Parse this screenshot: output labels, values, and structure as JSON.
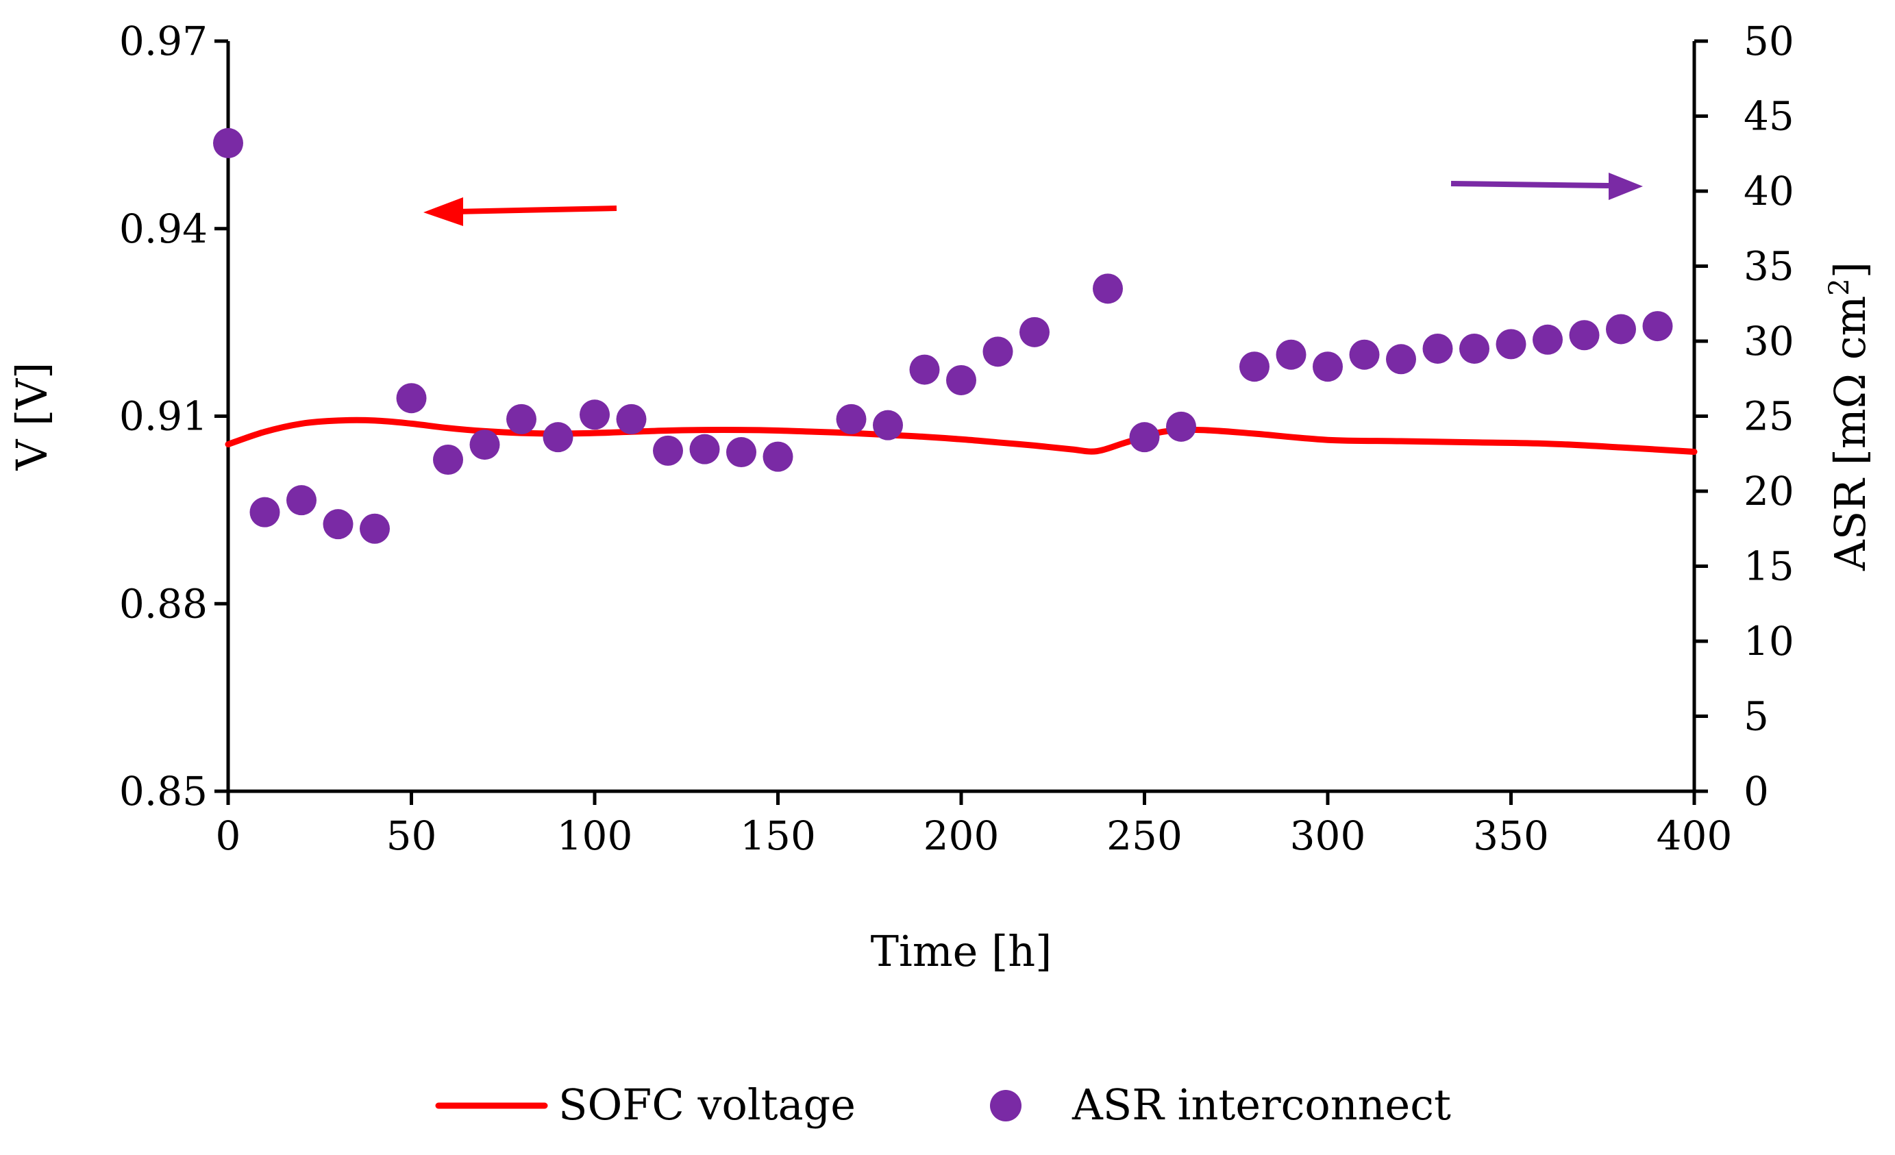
{
  "chart_data": {
    "type": "line+scatter",
    "xlabel": "Time [h]",
    "ylabel_left": "V [V]",
    "ylabel_right": "ASR [mΩ cm",
    "ylabel_right_sup": "2",
    "ylabel_right_close": "]",
    "xlim": [
      0,
      400
    ],
    "ylim_left": [
      0.85,
      0.97
    ],
    "ylim_right": [
      0,
      50
    ],
    "x_ticks": [
      "0",
      "50",
      "100",
      "150",
      "200",
      "250",
      "300",
      "350",
      "400"
    ],
    "y_left_ticks": [
      "0.85",
      "0.88",
      "0.91",
      "0.94",
      "0.97"
    ],
    "y_right_ticks": [
      "0",
      "5",
      "10",
      "15",
      "20",
      "25",
      "30",
      "35",
      "40",
      "45",
      "50"
    ],
    "grid": false,
    "legend_position": "bottom",
    "colors": {
      "voltage": "#ff0000",
      "asr": "#7a2aa5"
    },
    "series": [
      {
        "name": "SOFC voltage",
        "kind": "line",
        "axis": "left",
        "x": [
          0,
          10,
          20,
          30,
          40,
          50,
          60,
          70,
          80,
          90,
          100,
          110,
          120,
          130,
          140,
          150,
          160,
          170,
          180,
          190,
          200,
          210,
          220,
          230,
          237,
          245,
          255,
          265,
          280,
          300,
          320,
          340,
          360,
          380,
          400
        ],
        "y": [
          0.9055,
          0.9075,
          0.9088,
          0.9093,
          0.9093,
          0.9088,
          0.9081,
          0.9076,
          0.9073,
          0.9072,
          0.9073,
          0.9075,
          0.9077,
          0.9078,
          0.9078,
          0.9077,
          0.9075,
          0.9073,
          0.907,
          0.9067,
          0.9063,
          0.9058,
          0.9053,
          0.9047,
          0.9044,
          0.9058,
          0.9075,
          0.9078,
          0.9072,
          0.9062,
          0.906,
          0.9058,
          0.9056,
          0.905,
          0.9043
        ]
      },
      {
        "name": "ASR interconnect",
        "kind": "scatter",
        "axis": "right",
        "x": [
          0,
          10,
          20,
          30,
          40,
          50,
          60,
          70,
          80,
          90,
          100,
          110,
          120,
          130,
          140,
          150,
          170,
          180,
          190,
          200,
          210,
          220,
          240,
          250,
          260,
          280,
          290,
          300,
          310,
          320,
          330,
          340,
          350,
          360,
          370,
          380,
          390
        ],
        "y": [
          43.2,
          18.6,
          19.4,
          17.8,
          17.5,
          26.2,
          22.1,
          23.1,
          24.8,
          23.6,
          25.1,
          24.8,
          22.7,
          22.8,
          22.6,
          22.3,
          24.8,
          24.4,
          28.1,
          27.4,
          29.3,
          30.6,
          33.5,
          23.6,
          24.3,
          28.3,
          29.1,
          28.3,
          29.1,
          28.8,
          29.5,
          29.5,
          29.8,
          30.1,
          30.4,
          30.8,
          31.0
        ]
      }
    ],
    "annotations": [
      {
        "kind": "arrow",
        "direction": "left",
        "points_to_axis": "left",
        "color": "#ff0000"
      },
      {
        "kind": "arrow",
        "direction": "right",
        "points_to_axis": "right",
        "color": "#7a2aa5"
      }
    ]
  }
}
